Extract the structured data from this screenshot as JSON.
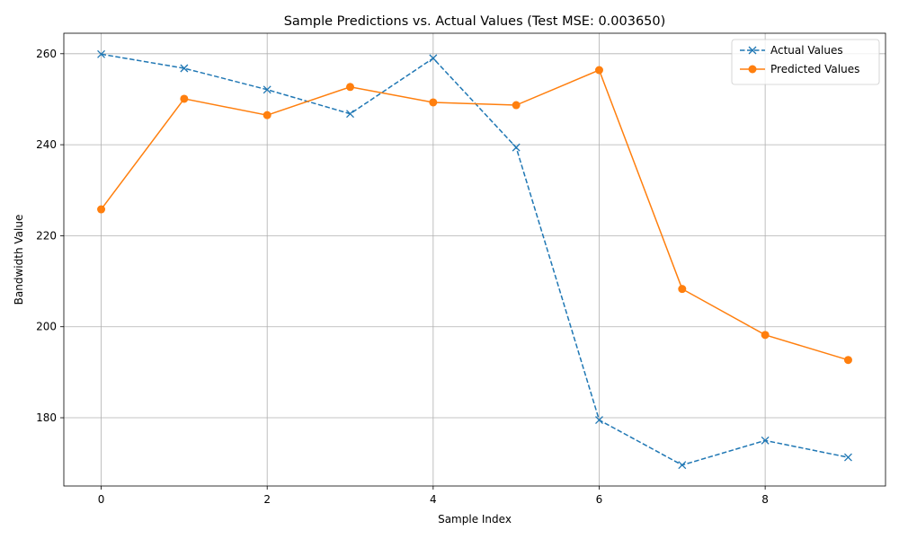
{
  "chart_data": {
    "type": "line",
    "title": "Sample Predictions vs. Actual Values (Test MSE: 0.003650)",
    "xlabel": "Sample Index",
    "ylabel": "Bandwidth Value",
    "x": [
      0,
      1,
      2,
      3,
      4,
      5,
      6,
      7,
      8,
      9
    ],
    "xlim": [
      -0.45,
      9.45
    ],
    "ylim": [
      165,
      264.5
    ],
    "xticks": [
      0,
      2,
      4,
      6,
      8
    ],
    "yticks": [
      180,
      200,
      220,
      240,
      260
    ],
    "grid": true,
    "legend_position": "top-right",
    "series": [
      {
        "name": "Actual Values",
        "color": "#1f77b4",
        "line_style": "dashed",
        "marker": "x",
        "values": [
          259.9,
          256.8,
          252.1,
          246.8,
          259.0,
          239.4,
          179.5,
          169.6,
          175.0,
          171.3
        ]
      },
      {
        "name": "Predicted Values",
        "color": "#ff7f0e",
        "line_style": "solid",
        "marker": "circle",
        "values": [
          225.8,
          250.1,
          246.5,
          252.7,
          249.3,
          248.7,
          256.4,
          208.3,
          198.2,
          192.7
        ]
      }
    ]
  }
}
